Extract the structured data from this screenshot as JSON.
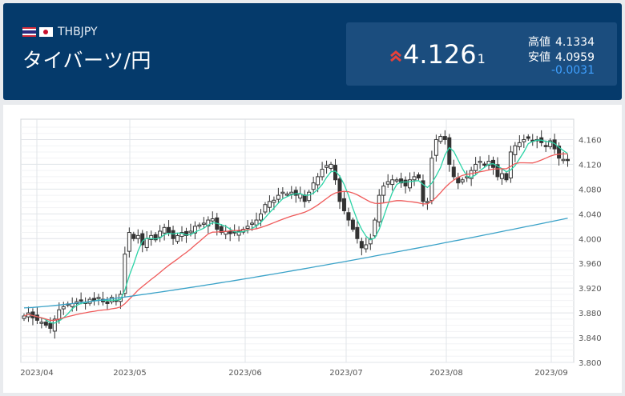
{
  "header": {
    "pair_code": "THBJPY",
    "pair_name": "タイバーツ/円",
    "price_main": "4.126",
    "price_small": "1",
    "high_label": "高値",
    "high_value": "4.1334",
    "low_label": "安値",
    "low_value": "4.0959",
    "change": "-0.0031",
    "trend_icon": "double-chevron-up-icon",
    "colors": {
      "background": "#053a6b",
      "panel": "#1b4d7e",
      "up_arrow": "#e8413a",
      "change": "#3fa0ff"
    }
  },
  "chart_data": {
    "type": "candlestick",
    "y_axis_ticks": [
      "4.160",
      "4.120",
      "4.080",
      "4.040",
      "4.000",
      "3.960",
      "3.920",
      "3.880",
      "3.840",
      "3.800"
    ],
    "ylim": [
      3.8,
      4.18
    ],
    "x_axis_ticks": [
      "2023/04",
      "2023/05",
      "2023/06",
      "2023/07",
      "2023/08",
      "2023/09"
    ],
    "grid": true,
    "series": [
      {
        "kind": "candles",
        "color": "#333333"
      },
      {
        "kind": "ma_short",
        "color": "#2bd3a6"
      },
      {
        "kind": "ma_mid",
        "color": "#ef5a5a"
      },
      {
        "kind": "ma_long",
        "color": "#3aa2c8"
      }
    ],
    "close_approx": [
      3.875,
      3.88,
      3.872,
      3.868,
      3.865,
      3.86,
      3.855,
      3.87,
      3.885,
      3.89,
      3.893,
      3.895,
      3.898,
      3.9,
      3.897,
      3.902,
      3.9,
      3.905,
      3.898,
      3.895,
      3.905,
      3.9,
      3.91,
      3.975,
      4.01,
      4.0,
      4.005,
      3.99,
      4.0,
      4.005,
      3.998,
      4.012,
      4.018,
      4.01,
      4.0,
      4.005,
      4.01,
      4.005,
      4.012,
      4.02,
      4.022,
      4.025,
      4.03,
      4.032,
      4.015,
      4.01,
      4.012,
      4.008,
      4.01,
      4.012,
      4.015,
      4.02,
      4.025,
      4.03,
      4.04,
      4.055,
      4.06,
      4.062,
      4.07,
      4.075,
      4.072,
      4.075,
      4.07,
      4.072,
      4.06,
      4.075,
      4.09,
      4.1,
      4.112,
      4.118,
      4.12,
      4.095,
      4.06,
      4.045,
      4.03,
      4.015,
      4.0,
      3.985,
      3.99,
      4.0,
      4.03,
      4.07,
      4.085,
      4.092,
      4.095,
      4.095,
      4.09,
      4.085,
      4.095,
      4.1,
      4.098,
      4.06,
      4.06,
      4.13,
      4.16,
      4.165,
      4.16,
      4.12,
      4.1,
      4.09,
      4.095,
      4.1,
      4.11,
      4.12,
      4.125,
      4.12,
      4.125,
      4.115,
      4.1,
      4.105,
      4.095,
      4.14,
      4.15,
      4.155,
      4.16,
      4.162,
      4.158,
      4.16,
      4.155,
      4.15,
      4.158,
      4.145,
      4.13,
      4.128,
      4.126
    ]
  }
}
